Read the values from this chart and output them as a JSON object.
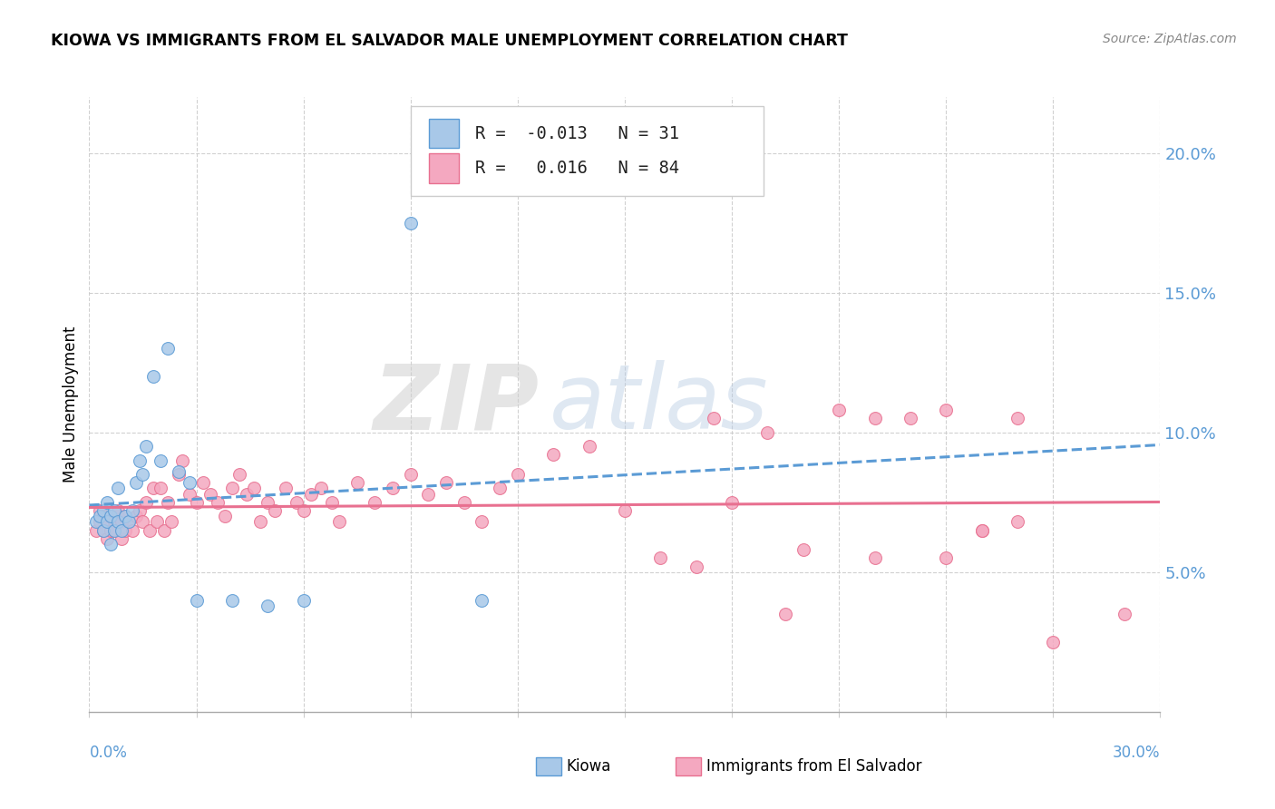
{
  "title": "KIOWA VS IMMIGRANTS FROM EL SALVADOR MALE UNEMPLOYMENT CORRELATION CHART",
  "source": "Source: ZipAtlas.com",
  "ylabel": "Male Unemployment",
  "legend_kiowa": "Kiowa",
  "legend_salvador": "Immigrants from El Salvador",
  "R_kiowa": -0.013,
  "N_kiowa": 31,
  "R_salvador": 0.016,
  "N_salvador": 84,
  "color_kiowa": "#A8C8E8",
  "color_salvador": "#F4A8C0",
  "color_kiowa_line": "#5B9BD5",
  "color_salvador_line": "#E87090",
  "xlim": [
    0.0,
    0.3
  ],
  "ylim": [
    0.0,
    0.22
  ],
  "ytick_labels": [
    "5.0%",
    "10.0%",
    "15.0%",
    "20.0%"
  ],
  "ytick_values": [
    0.05,
    0.1,
    0.15,
    0.2
  ],
  "watermark_zip": "ZIP",
  "watermark_atlas": "atlas",
  "kiowa_x": [
    0.002,
    0.003,
    0.004,
    0.004,
    0.005,
    0.005,
    0.006,
    0.006,
    0.007,
    0.007,
    0.008,
    0.008,
    0.009,
    0.01,
    0.011,
    0.012,
    0.013,
    0.014,
    0.015,
    0.016,
    0.018,
    0.02,
    0.022,
    0.025,
    0.028,
    0.03,
    0.04,
    0.05,
    0.06,
    0.09,
    0.11
  ],
  "kiowa_y": [
    0.068,
    0.07,
    0.072,
    0.065,
    0.075,
    0.068,
    0.06,
    0.07,
    0.065,
    0.072,
    0.08,
    0.068,
    0.065,
    0.07,
    0.068,
    0.072,
    0.082,
    0.09,
    0.085,
    0.095,
    0.12,
    0.09,
    0.13,
    0.086,
    0.082,
    0.04,
    0.04,
    0.038,
    0.04,
    0.175,
    0.04
  ],
  "salvador_x": [
    0.002,
    0.003,
    0.003,
    0.004,
    0.004,
    0.005,
    0.005,
    0.006,
    0.006,
    0.007,
    0.007,
    0.008,
    0.008,
    0.009,
    0.009,
    0.01,
    0.01,
    0.011,
    0.012,
    0.013,
    0.014,
    0.015,
    0.016,
    0.017,
    0.018,
    0.019,
    0.02,
    0.021,
    0.022,
    0.023,
    0.025,
    0.026,
    0.028,
    0.03,
    0.032,
    0.034,
    0.036,
    0.038,
    0.04,
    0.042,
    0.044,
    0.046,
    0.048,
    0.05,
    0.052,
    0.055,
    0.058,
    0.06,
    0.062,
    0.065,
    0.068,
    0.07,
    0.075,
    0.08,
    0.085,
    0.09,
    0.095,
    0.1,
    0.105,
    0.11,
    0.115,
    0.12,
    0.13,
    0.14,
    0.15,
    0.16,
    0.17,
    0.18,
    0.19,
    0.2,
    0.21,
    0.22,
    0.23,
    0.24,
    0.25,
    0.26,
    0.27,
    0.24,
    0.25,
    0.22,
    0.195,
    0.175,
    0.26,
    0.29
  ],
  "salvador_y": [
    0.065,
    0.068,
    0.072,
    0.065,
    0.07,
    0.068,
    0.062,
    0.065,
    0.07,
    0.068,
    0.065,
    0.07,
    0.072,
    0.068,
    0.062,
    0.065,
    0.07,
    0.068,
    0.065,
    0.07,
    0.072,
    0.068,
    0.075,
    0.065,
    0.08,
    0.068,
    0.08,
    0.065,
    0.075,
    0.068,
    0.085,
    0.09,
    0.078,
    0.075,
    0.082,
    0.078,
    0.075,
    0.07,
    0.08,
    0.085,
    0.078,
    0.08,
    0.068,
    0.075,
    0.072,
    0.08,
    0.075,
    0.072,
    0.078,
    0.08,
    0.075,
    0.068,
    0.082,
    0.075,
    0.08,
    0.085,
    0.078,
    0.082,
    0.075,
    0.068,
    0.08,
    0.085,
    0.092,
    0.095,
    0.072,
    0.055,
    0.052,
    0.075,
    0.1,
    0.058,
    0.108,
    0.105,
    0.105,
    0.108,
    0.065,
    0.068,
    0.025,
    0.055,
    0.065,
    0.055,
    0.035,
    0.105,
    0.105,
    0.035
  ]
}
